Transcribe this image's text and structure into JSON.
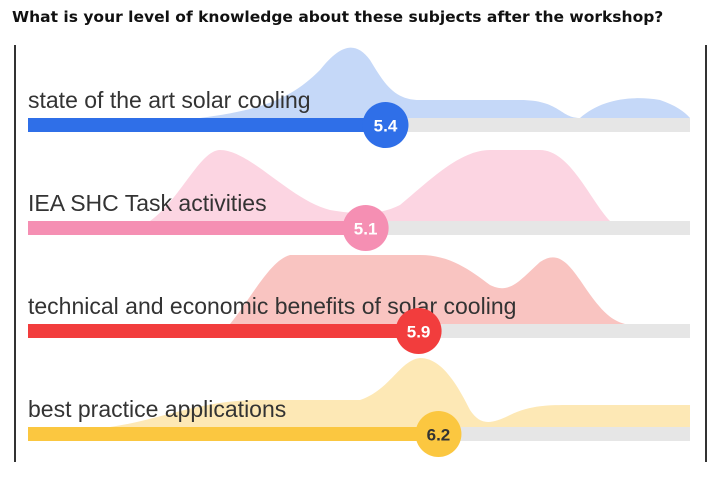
{
  "chart_data": {
    "type": "scale",
    "title": "What is your level of knowledge about these subjects after the workshop?",
    "categories": [
      "state of the art solar cooling",
      "IEA SHC Task activities",
      "technical and economic benefits of solar cooling",
      "best practice applications"
    ],
    "values": [
      5.4,
      5.1,
      5.9,
      6.2
    ],
    "colors": [
      "#2f6fe8",
      "#f58fb3",
      "#f23d3d",
      "#fbc740"
    ],
    "area_colors": [
      "#c5d8f8",
      "#fcd5e2",
      "#f9c4c1",
      "#fde8b5"
    ],
    "value_text_colors": [
      "#ffffff",
      "#ffffff",
      "#ffffff",
      "#333333"
    ],
    "xlim": [
      0,
      10
    ]
  }
}
